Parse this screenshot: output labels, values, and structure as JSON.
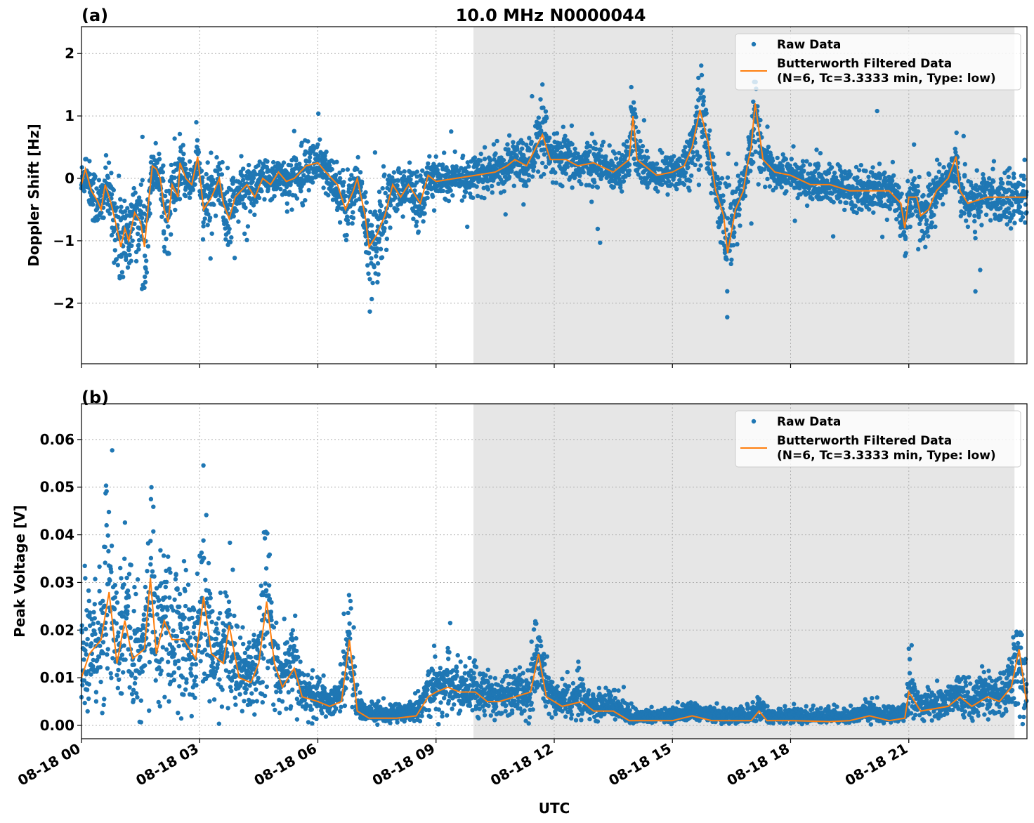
{
  "title": "10.0 MHz N0000044",
  "x_axis": {
    "label": "UTC",
    "date": "08-18",
    "range": [
      "00:00",
      "24:00"
    ],
    "ticks": [
      "08-18 00",
      "08-18 03",
      "08-18 06",
      "08-18 09",
      "08-18 12",
      "08-18 15",
      "08-18 18",
      "08-18 21"
    ],
    "tick_hours": [
      0,
      3,
      6,
      9,
      12,
      15,
      18,
      21
    ]
  },
  "colors": {
    "raw": "#1f77b4",
    "filtered": "#ff7f0e",
    "shade": "#e6e6e6",
    "grid": "#b0b0b0"
  },
  "chart_data": [
    {
      "type": "scatter+line",
      "panel_label": "(a)",
      "title": "10.0 MHz N0000044",
      "ylabel": "Doppler Shift [Hz]",
      "xlabel": "UTC",
      "ylim": [
        -2.97,
        2.43
      ],
      "yticks": [
        2,
        1,
        0,
        -1,
        -2
      ],
      "ytick_labels": [
        "2",
        "1",
        "0",
        "−1",
        "−2"
      ],
      "grid": true,
      "shaded_region": [
        "09:57",
        "23:41"
      ],
      "legend": {
        "position": "top-right",
        "entries": [
          "Raw Data",
          "Butterworth Filtered Data",
          "(N=6, Tc=3.3333 min, Type: low)"
        ]
      },
      "series": [
        {
          "name": "Raw Data",
          "kind": "scatter",
          "note_range": [
            -2.7,
            2.2
          ]
        },
        {
          "name": "Butterworth Filtered Data (N=6, Tc=3.3333 min, Type: low)",
          "kind": "line",
          "points": [
            [
              "00:00",
              -0.1
            ],
            [
              "00:06",
              0.15
            ],
            [
              "00:15",
              -0.2
            ],
            [
              "00:24",
              -0.35
            ],
            [
              "00:30",
              -0.5
            ],
            [
              "00:36",
              -0.1
            ],
            [
              "00:45",
              -0.4
            ],
            [
              "00:54",
              -0.8
            ],
            [
              "01:00",
              -1.1
            ],
            [
              "01:06",
              -0.8
            ],
            [
              "01:12",
              -1.0
            ],
            [
              "01:21",
              -0.55
            ],
            [
              "01:30",
              -0.7
            ],
            [
              "01:36",
              -1.1
            ],
            [
              "01:42",
              -0.4
            ],
            [
              "01:48",
              0.2
            ],
            [
              "01:54",
              0.15
            ],
            [
              "02:00",
              0.0
            ],
            [
              "02:06",
              -0.5
            ],
            [
              "02:12",
              -0.7
            ],
            [
              "02:18",
              -0.1
            ],
            [
              "02:27",
              -0.3
            ],
            [
              "02:30",
              0.25
            ],
            [
              "02:39",
              0.0
            ],
            [
              "02:48",
              -0.1
            ],
            [
              "02:57",
              0.35
            ],
            [
              "03:06",
              -0.5
            ],
            [
              "03:18",
              -0.3
            ],
            [
              "03:30",
              0.0
            ],
            [
              "03:36",
              -0.4
            ],
            [
              "03:45",
              -0.65
            ],
            [
              "03:54",
              -0.3
            ],
            [
              "04:12",
              -0.1
            ],
            [
              "04:24",
              -0.3
            ],
            [
              "04:36",
              0.0
            ],
            [
              "04:48",
              -0.1
            ],
            [
              "05:00",
              0.1
            ],
            [
              "05:12",
              -0.05
            ],
            [
              "05:24",
              0.0
            ],
            [
              "05:42",
              0.2
            ],
            [
              "06:00",
              0.25
            ],
            [
              "06:12",
              0.1
            ],
            [
              "06:30",
              -0.1
            ],
            [
              "06:42",
              -0.5
            ],
            [
              "06:54",
              -0.2
            ],
            [
              "07:00",
              0.0
            ],
            [
              "07:06",
              -0.3
            ],
            [
              "07:12",
              -0.6
            ],
            [
              "07:18",
              -1.1
            ],
            [
              "07:30",
              -0.9
            ],
            [
              "07:42",
              -0.6
            ],
            [
              "07:54",
              -0.1
            ],
            [
              "08:06",
              -0.3
            ],
            [
              "08:18",
              -0.1
            ],
            [
              "08:36",
              -0.4
            ],
            [
              "08:48",
              0.05
            ],
            [
              "09:00",
              -0.05
            ],
            [
              "09:30",
              0.0
            ],
            [
              "10:00",
              0.05
            ],
            [
              "10:30",
              0.1
            ],
            [
              "10:48",
              0.2
            ],
            [
              "11:00",
              0.3
            ],
            [
              "11:18",
              0.2
            ],
            [
              "11:42",
              0.7
            ],
            [
              "11:54",
              0.3
            ],
            [
              "12:18",
              0.3
            ],
            [
              "12:36",
              0.2
            ],
            [
              "13:00",
              0.25
            ],
            [
              "13:30",
              0.1
            ],
            [
              "13:54",
              0.3
            ],
            [
              "14:00",
              1.0
            ],
            [
              "14:06",
              0.3
            ],
            [
              "14:18",
              0.2
            ],
            [
              "14:36",
              0.05
            ],
            [
              "15:00",
              0.1
            ],
            [
              "15:18",
              0.2
            ],
            [
              "15:30",
              0.5
            ],
            [
              "15:42",
              1.1
            ],
            [
              "15:54",
              0.6
            ],
            [
              "16:06",
              -0.2
            ],
            [
              "16:18",
              -0.6
            ],
            [
              "16:24",
              -1.2
            ],
            [
              "16:36",
              -0.5
            ],
            [
              "16:48",
              -0.2
            ],
            [
              "16:54",
              0.2
            ],
            [
              "17:00",
              0.5
            ],
            [
              "17:06",
              1.2
            ],
            [
              "17:18",
              0.3
            ],
            [
              "17:36",
              0.1
            ],
            [
              "18:00",
              0.05
            ],
            [
              "18:30",
              -0.1
            ],
            [
              "19:00",
              -0.1
            ],
            [
              "19:30",
              -0.2
            ],
            [
              "20:00",
              -0.2
            ],
            [
              "20:30",
              -0.2
            ],
            [
              "20:48",
              -0.4
            ],
            [
              "20:54",
              -0.8
            ],
            [
              "21:00",
              -0.3
            ],
            [
              "21:12",
              -0.3
            ],
            [
              "21:18",
              -0.6
            ],
            [
              "21:30",
              -0.5
            ],
            [
              "21:42",
              -0.2
            ],
            [
              "22:00",
              0.0
            ],
            [
              "22:12",
              0.35
            ],
            [
              "22:18",
              -0.2
            ],
            [
              "22:30",
              -0.4
            ],
            [
              "23:00",
              -0.3
            ],
            [
              "23:30",
              -0.3
            ],
            [
              "23:59",
              -0.3
            ]
          ]
        }
      ]
    },
    {
      "type": "scatter+line",
      "panel_label": "(b)",
      "ylabel": "Peak Voltage [V]",
      "xlabel": "UTC",
      "ylim": [
        -0.0028,
        0.0675
      ],
      "yticks": [
        0.0,
        0.01,
        0.02,
        0.03,
        0.04,
        0.05,
        0.06
      ],
      "ytick_labels": [
        "0.00",
        "0.01",
        "0.02",
        "0.03",
        "0.04",
        "0.05",
        "0.06"
      ],
      "grid": true,
      "shaded_region": [
        "09:57",
        "23:41"
      ],
      "legend": {
        "position": "top-right",
        "entries": [
          "Raw Data",
          "Butterworth Filtered Data",
          "(N=6, Tc=3.3333 min, Type: low)"
        ]
      },
      "series": [
        {
          "name": "Raw Data",
          "kind": "scatter",
          "note_range": [
            0.0,
            0.064
          ]
        },
        {
          "name": "Butterworth Filtered Data (N=6, Tc=3.3333 min, Type: low)",
          "kind": "line",
          "points": [
            [
              "00:00",
              0.01
            ],
            [
              "00:12",
              0.015
            ],
            [
              "00:30",
              0.018
            ],
            [
              "00:42",
              0.028
            ],
            [
              "00:54",
              0.013
            ],
            [
              "01:06",
              0.022
            ],
            [
              "01:18",
              0.014
            ],
            [
              "01:36",
              0.016
            ],
            [
              "01:45",
              0.031
            ],
            [
              "01:54",
              0.015
            ],
            [
              "02:06",
              0.022
            ],
            [
              "02:18",
              0.018
            ],
            [
              "02:36",
              0.018
            ],
            [
              "02:54",
              0.014
            ],
            [
              "03:06",
              0.027
            ],
            [
              "03:18",
              0.015
            ],
            [
              "03:36",
              0.013
            ],
            [
              "03:45",
              0.021
            ],
            [
              "04:00",
              0.01
            ],
            [
              "04:18",
              0.009
            ],
            [
              "04:30",
              0.013
            ],
            [
              "04:42",
              0.026
            ],
            [
              "04:54",
              0.013
            ],
            [
              "05:06",
              0.008
            ],
            [
              "05:24",
              0.012
            ],
            [
              "05:36",
              0.006
            ],
            [
              "06:00",
              0.005
            ],
            [
              "06:18",
              0.004
            ],
            [
              "06:36",
              0.005
            ],
            [
              "06:48",
              0.018
            ],
            [
              "07:00",
              0.003
            ],
            [
              "07:18",
              0.0015
            ],
            [
              "08:00",
              0.0015
            ],
            [
              "08:30",
              0.002
            ],
            [
              "08:48",
              0.006
            ],
            [
              "09:00",
              0.007
            ],
            [
              "09:18",
              0.008
            ],
            [
              "09:36",
              0.007
            ],
            [
              "10:00",
              0.007
            ],
            [
              "10:18",
              0.005
            ],
            [
              "10:36",
              0.005
            ],
            [
              "11:00",
              0.006
            ],
            [
              "11:24",
              0.007
            ],
            [
              "11:36",
              0.015
            ],
            [
              "11:48",
              0.006
            ],
            [
              "12:12",
              0.004
            ],
            [
              "12:42",
              0.005
            ],
            [
              "13:00",
              0.003
            ],
            [
              "13:30",
              0.003
            ],
            [
              "13:54",
              0.001
            ],
            [
              "14:30",
              0.001
            ],
            [
              "15:00",
              0.001
            ],
            [
              "15:30",
              0.002
            ],
            [
              "16:00",
              0.001
            ],
            [
              "17:00",
              0.001
            ],
            [
              "17:12",
              0.003
            ],
            [
              "17:24",
              0.001
            ],
            [
              "18:00",
              0.001
            ],
            [
              "19:00",
              0.0008
            ],
            [
              "19:30",
              0.001
            ],
            [
              "20:00",
              0.002
            ],
            [
              "20:30",
              0.001
            ],
            [
              "20:54",
              0.0015
            ],
            [
              "21:00",
              0.007
            ],
            [
              "21:18",
              0.003
            ],
            [
              "22:00",
              0.004
            ],
            [
              "22:18",
              0.006
            ],
            [
              "22:36",
              0.004
            ],
            [
              "23:00",
              0.006
            ],
            [
              "23:18",
              0.005
            ],
            [
              "23:36",
              0.008
            ],
            [
              "23:48",
              0.016
            ],
            [
              "23:59",
              0.005
            ]
          ]
        }
      ]
    }
  ]
}
